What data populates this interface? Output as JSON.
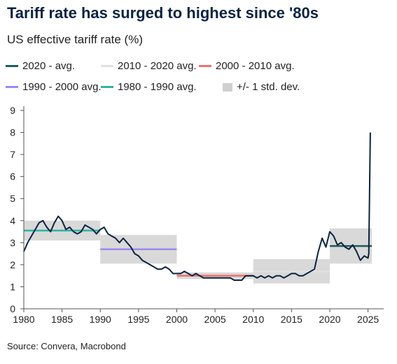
{
  "title": "Tariff rate has surged to highest since '80s",
  "subtitle": "US effective tariff rate (%)",
  "source": "Source: Convera, Macrobond",
  "legend": [
    {
      "label": "2020 - avg.",
      "color": "#1d5c5c",
      "kind": "line"
    },
    {
      "label": "2010 - 2020 avg.",
      "color": "#e0e0e0",
      "kind": "line"
    },
    {
      "label": "2000 - 2010 avg.",
      "color": "#f07067",
      "kind": "line"
    },
    {
      "label": "1990 - 2000 avg.",
      "color": "#9a8af0",
      "kind": "line"
    },
    {
      "label": "1980 - 1990 avg.",
      "color": "#2ab5a3",
      "kind": "line"
    },
    {
      "label": "+/- 1 std. dev.",
      "color": "#cfcfcf",
      "kind": "box"
    }
  ],
  "chart_data": {
    "type": "line",
    "xlabel": "",
    "ylabel": "",
    "xlim": [
      1980,
      2026.5
    ],
    "ylim": [
      0,
      9
    ],
    "x_ticks": [
      1980,
      1985,
      1990,
      1995,
      2000,
      2005,
      2010,
      2015,
      2020,
      2025
    ],
    "y_ticks": [
      0,
      1,
      2,
      3,
      4,
      5,
      6,
      7,
      8,
      9
    ],
    "grid": false,
    "legend_position": "top",
    "series": [
      {
        "name": "",
        "color": "#0b2340",
        "x": [
          1980,
          1980.5,
          1981,
          1981.5,
          1982,
          1982.5,
          1983,
          1983.5,
          1984,
          1984.5,
          1985,
          1985.5,
          1986,
          1986.5,
          1987,
          1987.5,
          1988,
          1988.5,
          1989,
          1989.5,
          1990,
          1990.5,
          1991,
          1991.5,
          1992,
          1992.5,
          1993,
          1993.5,
          1994,
          1994.5,
          1995,
          1995.5,
          1996,
          1996.5,
          1997,
          1997.5,
          1998,
          1998.5,
          1999,
          1999.5,
          2000,
          2000.5,
          2001,
          2001.5,
          2002,
          2002.5,
          2003,
          2003.5,
          2004,
          2004.5,
          2005,
          2005.5,
          2006,
          2006.5,
          2007,
          2007.5,
          2008,
          2008.5,
          2009,
          2009.5,
          2010,
          2010.5,
          2011,
          2011.5,
          2012,
          2012.5,
          2013,
          2013.5,
          2014,
          2014.5,
          2015,
          2015.5,
          2016,
          2016.5,
          2017,
          2017.5,
          2018,
          2018.5,
          2019,
          2019.5,
          2020,
          2020.5,
          2021,
          2021.5,
          2022,
          2022.5,
          2023,
          2023.5,
          2024,
          2024.5,
          2025,
          2025.1,
          2025.3
        ],
        "y": [
          2.6,
          3.0,
          3.3,
          3.6,
          3.9,
          4.0,
          3.7,
          3.5,
          3.9,
          4.2,
          4.0,
          3.6,
          3.7,
          3.5,
          3.4,
          3.5,
          3.8,
          3.7,
          3.6,
          3.4,
          3.6,
          3.7,
          3.4,
          3.3,
          3.2,
          3.0,
          3.2,
          3.0,
          2.8,
          2.5,
          2.4,
          2.2,
          2.1,
          2.0,
          1.9,
          1.8,
          1.8,
          1.9,
          1.8,
          1.6,
          1.6,
          1.6,
          1.7,
          1.6,
          1.5,
          1.6,
          1.5,
          1.4,
          1.4,
          1.4,
          1.4,
          1.4,
          1.4,
          1.4,
          1.4,
          1.3,
          1.3,
          1.3,
          1.5,
          1.5,
          1.5,
          1.4,
          1.5,
          1.4,
          1.5,
          1.4,
          1.5,
          1.5,
          1.4,
          1.5,
          1.6,
          1.6,
          1.5,
          1.5,
          1.6,
          1.7,
          1.8,
          2.6,
          3.2,
          2.8,
          3.5,
          3.3,
          2.9,
          3.0,
          2.8,
          2.7,
          2.9,
          2.6,
          2.2,
          2.4,
          2.3,
          2.5,
          8.0
        ]
      }
    ],
    "averages": [
      {
        "name": "1980 - 1990 avg.",
        "x0": 1980,
        "x1": 1990,
        "avg": 3.55,
        "sd": 0.45,
        "color": "#2ab5a3"
      },
      {
        "name": "1990 - 2000 avg.",
        "x0": 1990,
        "x1": 2000,
        "avg": 2.7,
        "sd": 0.65,
        "color": "#9a8af0"
      },
      {
        "name": "2000 - 2010 avg.",
        "x0": 2000,
        "x1": 2010,
        "avg": 1.5,
        "sd": 0.15,
        "color": "#f07067"
      },
      {
        "name": "2010 - 2020 avg.",
        "x0": 2010,
        "x1": 2020,
        "avg": 1.7,
        "sd": 0.55,
        "color": "#e0e0e0"
      },
      {
        "name": "2020 - avg.",
        "x0": 2020,
        "x1": 2025.5,
        "avg": 2.85,
        "sd": 0.8,
        "color": "#1d5c5c"
      }
    ]
  }
}
